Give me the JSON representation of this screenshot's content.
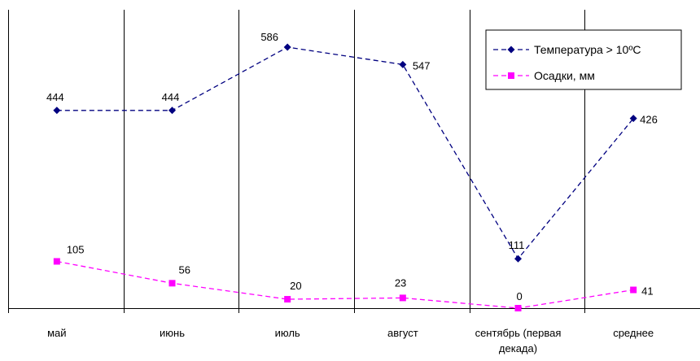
{
  "chart_data": {
    "type": "line",
    "categories": [
      "май",
      "июнь",
      "июль",
      "август",
      "сентябрь (первая декада)",
      "среднее"
    ],
    "category_label_lines": [
      [
        "май"
      ],
      [
        "июнь"
      ],
      [
        "июль"
      ],
      [
        "август"
      ],
      [
        "сентябрь (первая",
        "декада)"
      ],
      [
        "среднее"
      ]
    ],
    "series": [
      {
        "name": "Температура > 10ºС",
        "values": [
          444,
          444,
          586,
          547,
          111,
          426
        ],
        "color": "#000080",
        "marker": "diamond"
      },
      {
        "name": "Осадки, мм",
        "values": [
          105,
          56,
          20,
          23,
          0,
          41
        ],
        "color": "#ff00ff",
        "marker": "square"
      }
    ],
    "ylim": [
      0,
      670
    ],
    "grid": "vertical lines between categories",
    "legend_position": "top-right",
    "data_labels": true
  }
}
